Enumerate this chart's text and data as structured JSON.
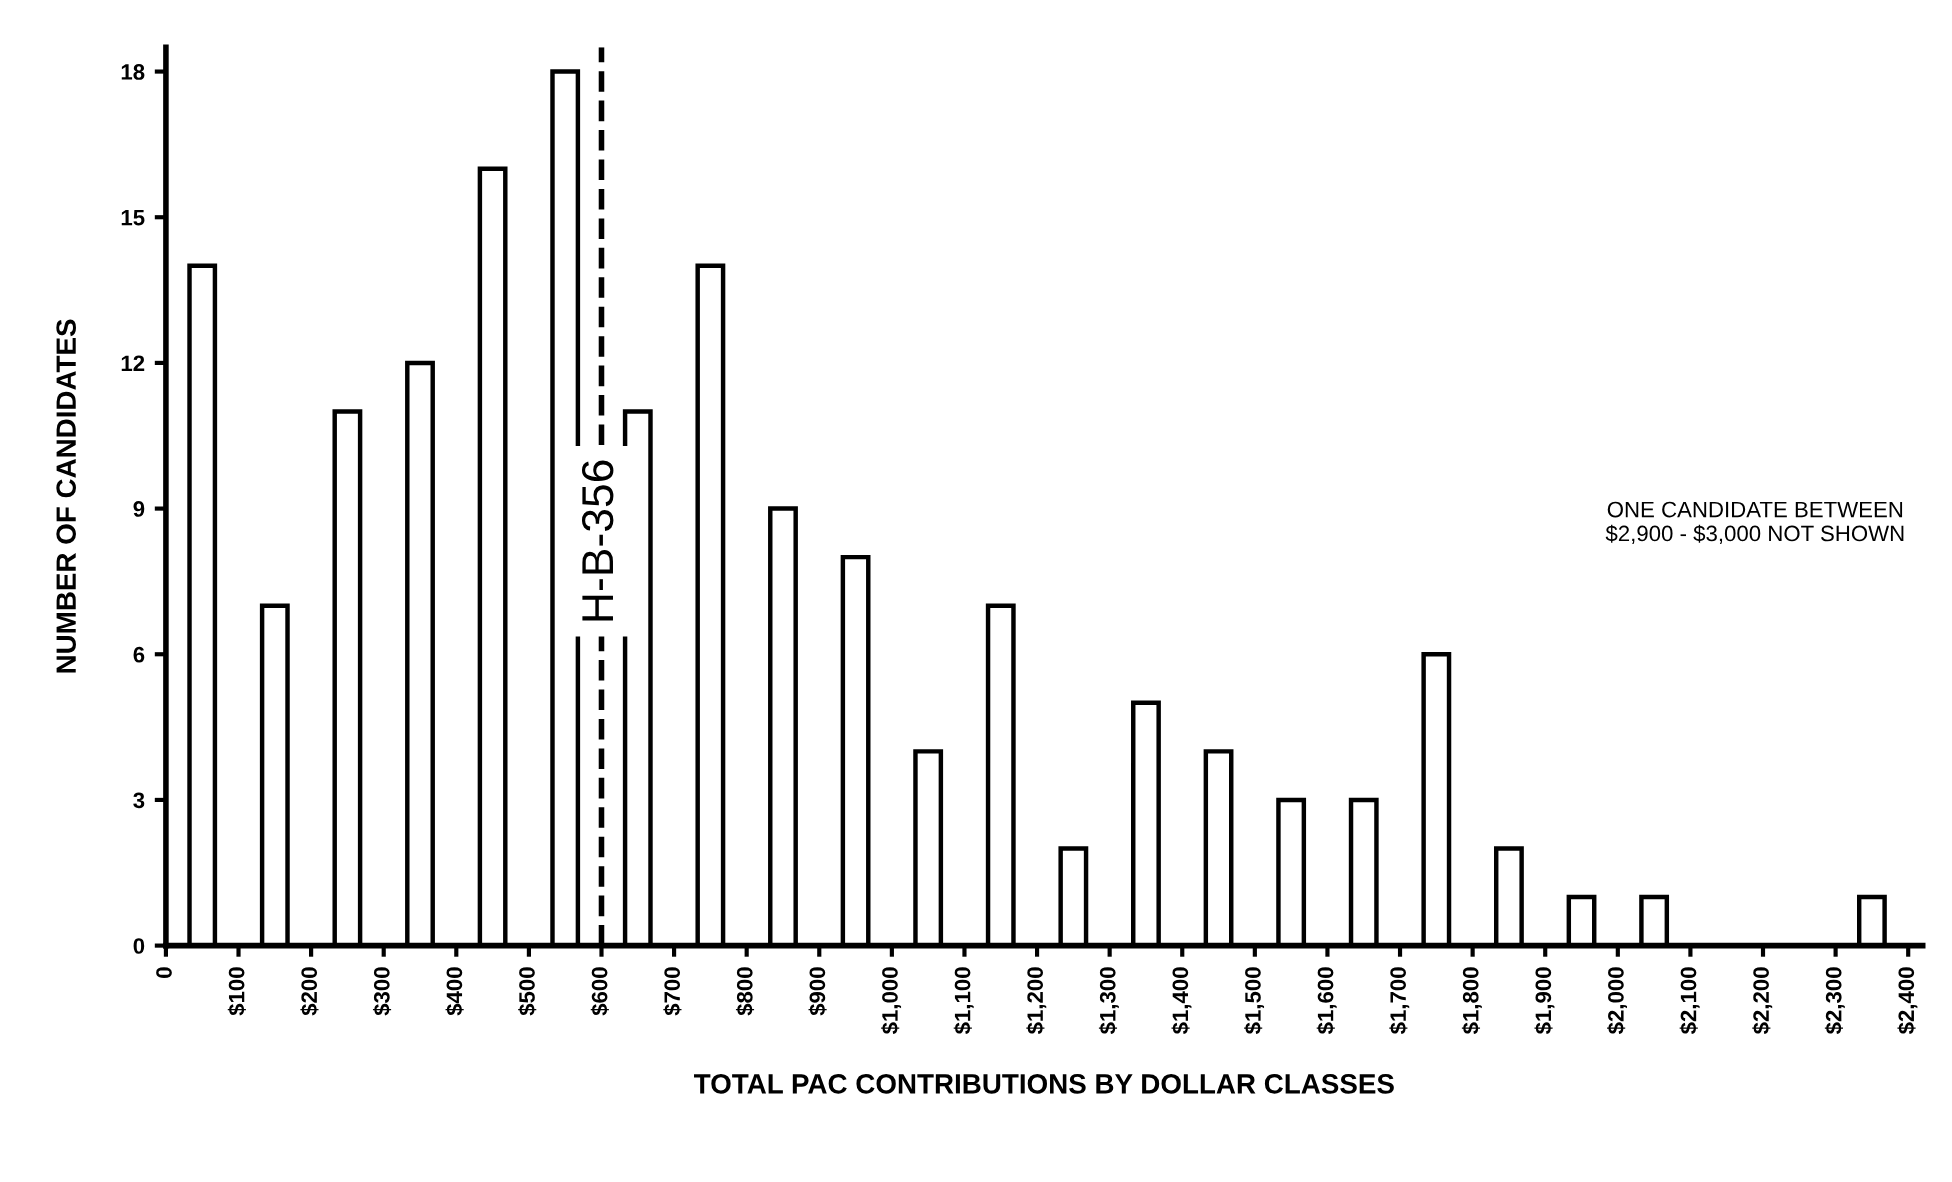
{
  "chart_data": {
    "type": "histogram",
    "xlabel": "TOTAL PAC CONTRIBUTIONS BY DOLLAR CLASSES",
    "ylabel": "NUMBER OF CANDIDATES",
    "bins": [
      0,
      100,
      200,
      300,
      400,
      500,
      600,
      700,
      800,
      900,
      1000,
      1100,
      1200,
      1300,
      1400,
      1500,
      1600,
      1700,
      1800,
      1900,
      2000,
      2100,
      2200,
      2300,
      2400
    ],
    "values": [
      14,
      7,
      11,
      12,
      16,
      18,
      11,
      14,
      9,
      8,
      4,
      7,
      2,
      5,
      4,
      3,
      3,
      6,
      2,
      1,
      1,
      0,
      0,
      1
    ],
    "color": "#000000",
    "xlim": [
      0,
      2420
    ],
    "xticks": [
      {
        "value": 0,
        "label": "0"
      },
      {
        "value": 100,
        "label": "$100"
      },
      {
        "value": 200,
        "label": "$200"
      },
      {
        "value": 300,
        "label": "$300"
      },
      {
        "value": 400,
        "label": "$400"
      },
      {
        "value": 500,
        "label": "$500"
      },
      {
        "value": 600,
        "label": "$600"
      },
      {
        "value": 700,
        "label": "$700"
      },
      {
        "value": 800,
        "label": "$800"
      },
      {
        "value": 900,
        "label": "$900"
      },
      {
        "value": 1000,
        "label": "$1,000"
      },
      {
        "value": 1100,
        "label": "$1,100"
      },
      {
        "value": 1200,
        "label": "$1,200"
      },
      {
        "value": 1300,
        "label": "$1,300"
      },
      {
        "value": 1400,
        "label": "$1,400"
      },
      {
        "value": 1500,
        "label": "$1,500"
      },
      {
        "value": 1600,
        "label": "$1,600"
      },
      {
        "value": 1700,
        "label": "$1,700"
      },
      {
        "value": 1800,
        "label": "$1,800"
      },
      {
        "value": 1900,
        "label": "$1,900"
      },
      {
        "value": 2000,
        "label": "$2,000"
      },
      {
        "value": 2100,
        "label": "$2,100"
      },
      {
        "value": 2200,
        "label": "$2,200"
      },
      {
        "value": 2300,
        "label": "$2,300"
      },
      {
        "value": 2400,
        "label": "$2,400"
      }
    ],
    "ylim": [
      0,
      18.5
    ],
    "yticks": [
      0,
      3,
      6,
      9,
      12,
      15,
      18
    ],
    "ref_lines": [
      {
        "axis": "x",
        "value": 600,
        "label": "H-B-356",
        "line_style": "dashed",
        "color": "#000000"
      }
    ],
    "annotations": [
      "ONE CANDIDATE BETWEEN\n$2,900 - $3,000 NOT SHOWN"
    ],
    "grid": false,
    "legend": false
  }
}
